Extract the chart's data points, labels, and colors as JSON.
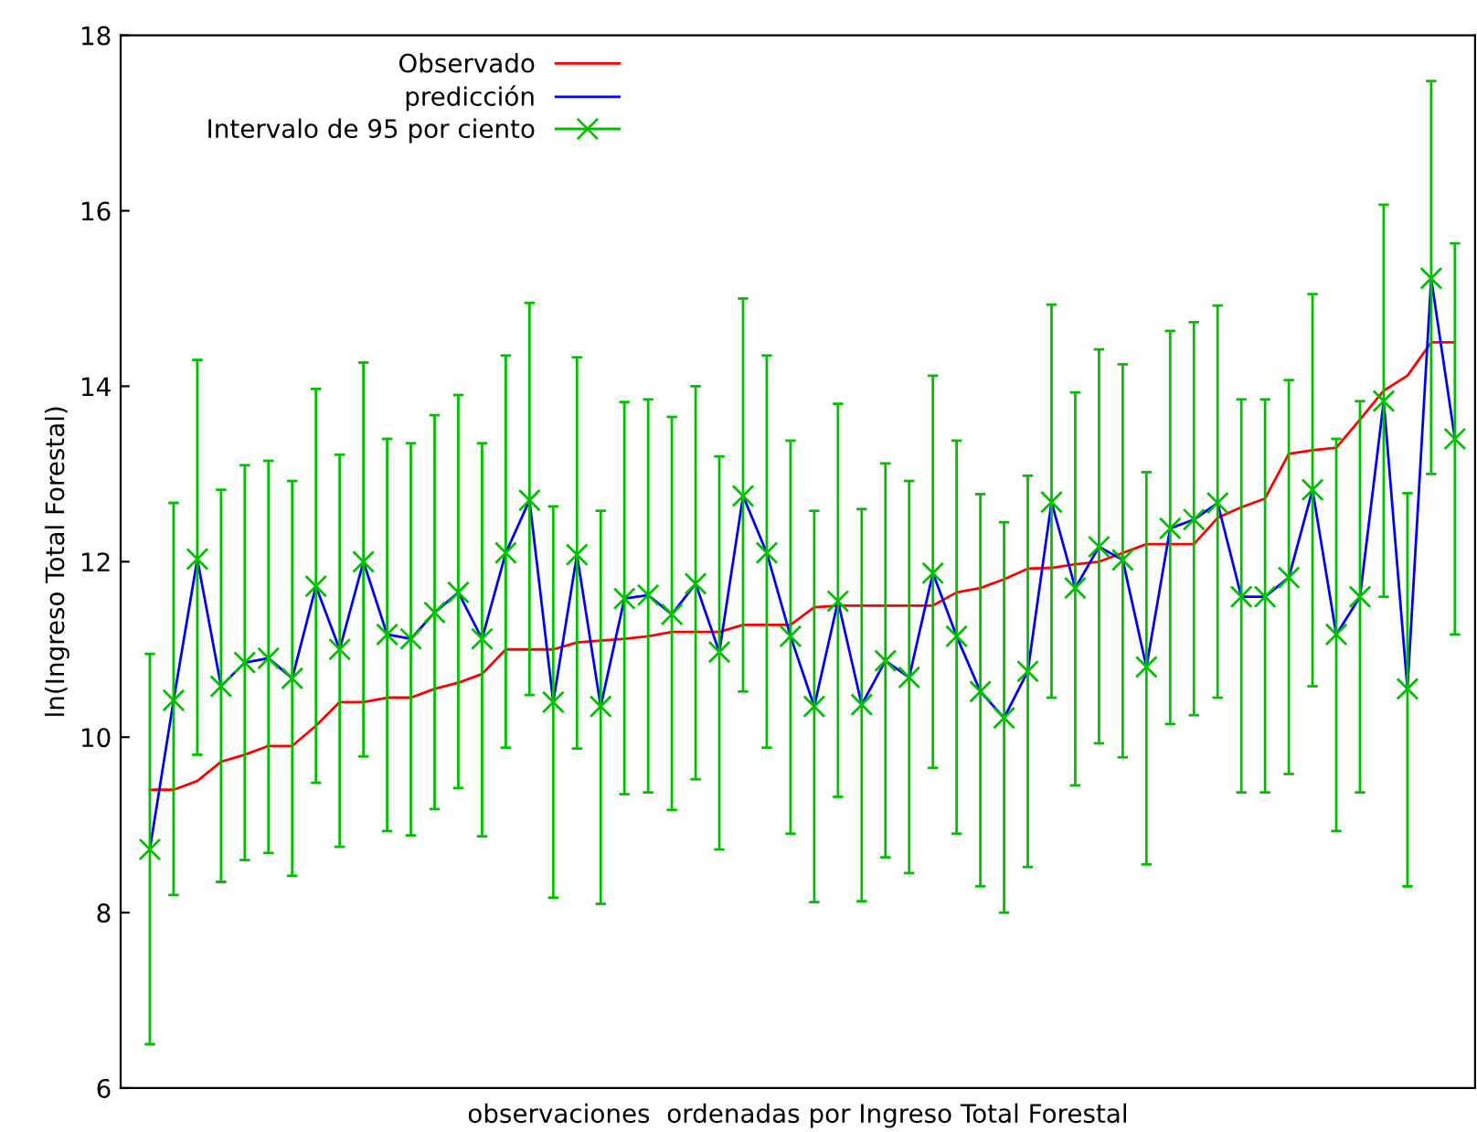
{
  "chart_data": {
    "type": "line",
    "xlabel": "observaciones  ordenadas por Ingreso Total Forestal",
    "ylabel": "ln(Ingreso Total Forestal)",
    "categories": [
      null,
      null,
      null,
      null,
      null,
      null,
      null,
      null,
      null,
      null,
      null,
      null,
      null,
      null,
      null,
      null,
      null,
      null,
      null,
      null,
      null,
      null,
      null,
      null,
      null,
      null,
      null,
      null,
      null,
      null,
      null,
      null,
      null,
      null,
      null,
      null,
      null,
      null,
      null,
      null,
      null,
      null,
      null,
      null,
      null,
      null,
      null,
      null,
      null,
      null,
      null,
      null,
      null,
      null,
      null,
      null
    ],
    "ylim": [
      6,
      18
    ],
    "yticks": [
      6,
      8,
      10,
      12,
      14,
      16,
      18
    ],
    "grid": false,
    "legend": "top left",
    "tick_labels": "y",
    "series": [
      {
        "name": "Observado",
        "color": "#ff0000",
        "marker": "none",
        "values": [
          9.4,
          9.4,
          9.5,
          9.72,
          9.8,
          9.9,
          9.9,
          10.13,
          10.4,
          10.4,
          10.45,
          10.45,
          10.55,
          10.62,
          10.72,
          11.0,
          11.0,
          11.0,
          11.08,
          11.1,
          11.12,
          11.15,
          11.2,
          11.2,
          11.2,
          11.28,
          11.28,
          11.28,
          11.48,
          11.5,
          11.5,
          11.5,
          11.5,
          11.5,
          11.65,
          11.7,
          11.8,
          11.92,
          11.93,
          11.97,
          12.0,
          12.1,
          12.2,
          12.2,
          12.2,
          12.5,
          12.62,
          12.72,
          13.23,
          13.27,
          13.3,
          13.62,
          13.95,
          14.12,
          14.5,
          14.5
        ]
      },
      {
        "name": "predicción",
        "color": "#0000ff",
        "marker": "none",
        "values": [
          8.72,
          10.42,
          12.03,
          10.58,
          10.85,
          10.9,
          10.67,
          11.72,
          11.0,
          12.0,
          11.17,
          11.12,
          11.42,
          11.65,
          11.12,
          12.1,
          12.7,
          10.4,
          12.08,
          10.35,
          11.58,
          11.62,
          11.4,
          11.75,
          10.97,
          12.75,
          12.1,
          11.15,
          10.35,
          11.55,
          10.37,
          10.87,
          10.68,
          11.87,
          11.15,
          10.52,
          10.22,
          10.75,
          12.68,
          11.7,
          12.17,
          12.02,
          10.8,
          12.38,
          12.48,
          12.67,
          11.6,
          11.6,
          11.82,
          12.82,
          11.17,
          11.6,
          13.83,
          10.55,
          15.23,
          13.4
        ]
      },
      {
        "name": "Intervalo de 95 por ciento",
        "type": "scatter",
        "color": "#00c000",
        "marker": "cross",
        "values": [
          8.72,
          10.42,
          12.03,
          10.58,
          10.85,
          10.9,
          10.67,
          11.72,
          11.0,
          12.0,
          11.17,
          11.12,
          11.42,
          11.65,
          11.12,
          12.1,
          12.7,
          10.4,
          12.08,
          10.35,
          11.58,
          11.62,
          11.4,
          11.75,
          10.97,
          12.75,
          12.1,
          11.15,
          10.35,
          11.55,
          10.37,
          10.87,
          10.68,
          11.87,
          11.15,
          10.52,
          10.22,
          10.75,
          12.68,
          11.7,
          12.17,
          12.02,
          10.8,
          12.38,
          12.48,
          12.67,
          11.6,
          11.6,
          11.82,
          12.82,
          11.17,
          11.6,
          13.83,
          10.55,
          15.23,
          13.4
        ],
        "errors": [
          [
            6.5,
            10.95
          ],
          [
            8.2,
            12.67
          ],
          [
            9.8,
            14.3
          ],
          [
            8.35,
            12.82
          ],
          [
            8.6,
            13.1
          ],
          [
            8.68,
            13.15
          ],
          [
            8.42,
            12.92
          ],
          [
            9.48,
            13.97
          ],
          [
            8.75,
            13.22
          ],
          [
            9.78,
            14.27
          ],
          [
            8.93,
            13.4
          ],
          [
            8.88,
            13.35
          ],
          [
            9.18,
            13.67
          ],
          [
            9.42,
            13.9
          ],
          [
            8.87,
            13.35
          ],
          [
            9.88,
            14.35
          ],
          [
            10.48,
            14.95
          ],
          [
            8.17,
            12.63
          ],
          [
            9.87,
            14.33
          ],
          [
            8.1,
            12.58
          ],
          [
            9.35,
            13.82
          ],
          [
            9.37,
            13.85
          ],
          [
            9.17,
            13.65
          ],
          [
            9.52,
            14.0
          ],
          [
            8.72,
            13.2
          ],
          [
            10.52,
            15.0
          ],
          [
            9.88,
            14.35
          ],
          [
            8.9,
            13.38
          ],
          [
            8.12,
            12.58
          ],
          [
            9.32,
            13.8
          ],
          [
            8.13,
            12.6
          ],
          [
            8.63,
            13.12
          ],
          [
            8.45,
            12.92
          ],
          [
            9.65,
            14.12
          ],
          [
            8.9,
            13.38
          ],
          [
            8.3,
            12.77
          ],
          [
            8.0,
            12.45
          ],
          [
            8.52,
            12.98
          ],
          [
            10.45,
            14.93
          ],
          [
            9.45,
            13.93
          ],
          [
            9.93,
            14.42
          ],
          [
            9.77,
            14.25
          ],
          [
            8.55,
            13.02
          ],
          [
            10.15,
            14.63
          ],
          [
            10.25,
            14.73
          ],
          [
            10.45,
            14.92
          ],
          [
            9.37,
            13.85
          ],
          [
            9.37,
            13.85
          ],
          [
            9.58,
            14.07
          ],
          [
            10.58,
            15.05
          ],
          [
            8.93,
            13.4
          ],
          [
            9.37,
            13.83
          ],
          [
            11.6,
            16.07
          ],
          [
            8.3,
            12.78
          ],
          [
            13.0,
            17.48
          ],
          [
            11.17,
            15.63
          ]
        ]
      }
    ]
  }
}
